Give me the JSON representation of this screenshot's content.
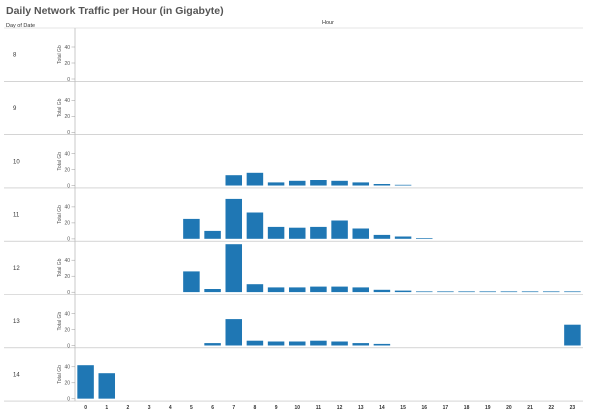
{
  "header": {
    "title": "Daily Network Traffic per Hour (in Gigabyte)",
    "row_header": "Day of Date",
    "col_header": "Hour"
  },
  "chart_data": {
    "type": "bar",
    "title": "Daily Network Traffic per Hour (in Gigabyte)",
    "xlabel": "Hour",
    "ylabel": "Total Gb",
    "row_dimension": "Day of Date",
    "ylim": [
      0,
      50
    ],
    "yticks": [
      "0",
      "20",
      "40"
    ],
    "bar_color": "#1f77b4",
    "categories": [
      "0",
      "1",
      "2",
      "3",
      "4",
      "5",
      "6",
      "7",
      "8",
      "9",
      "10",
      "11",
      "12",
      "13",
      "14",
      "15",
      "16",
      "17",
      "18",
      "19",
      "20",
      "21",
      "22",
      "23"
    ],
    "series": [
      {
        "name": "8",
        "values": [
          0,
          0,
          0,
          0,
          0,
          0,
          0,
          0,
          0,
          0,
          0,
          0,
          0,
          0,
          0,
          0,
          0,
          0,
          0,
          0,
          0,
          0,
          0,
          0
        ]
      },
      {
        "name": "9",
        "values": [
          0,
          0,
          0,
          0,
          0,
          0,
          0,
          0,
          0,
          0,
          0,
          0,
          0,
          0,
          0,
          0,
          0,
          0,
          0,
          0,
          0,
          0,
          0,
          0
        ]
      },
      {
        "name": "10",
        "values": [
          0,
          0,
          0,
          0,
          0,
          0,
          0,
          13,
          16,
          4,
          6,
          7,
          6,
          4,
          2,
          1,
          0,
          0,
          0,
          0,
          0,
          0,
          0,
          0
        ]
      },
      {
        "name": "11",
        "values": [
          0,
          0,
          0,
          0,
          0,
          25,
          10,
          50,
          33,
          15,
          14,
          15,
          23,
          13,
          5,
          3,
          1,
          0,
          0,
          0,
          0,
          0,
          0,
          0
        ]
      },
      {
        "name": "12",
        "values": [
          0,
          0,
          0,
          0,
          0,
          26,
          4,
          60,
          10,
          6,
          6,
          7,
          7,
          6,
          3,
          2,
          1,
          1,
          1,
          1,
          1,
          1,
          1,
          1
        ]
      },
      {
        "name": "13",
        "values": [
          0,
          0,
          0,
          0,
          0,
          0,
          3,
          33,
          6,
          5,
          5,
          6,
          5,
          3,
          2,
          0,
          0,
          0,
          0,
          0,
          0,
          0,
          0,
          26
        ]
      },
      {
        "name": "14",
        "values": [
          42,
          32,
          0,
          0,
          0,
          0,
          0,
          0,
          0,
          0,
          0,
          0,
          0,
          0,
          0,
          0,
          0,
          0,
          0,
          0,
          0,
          0,
          0,
          0
        ]
      }
    ]
  }
}
